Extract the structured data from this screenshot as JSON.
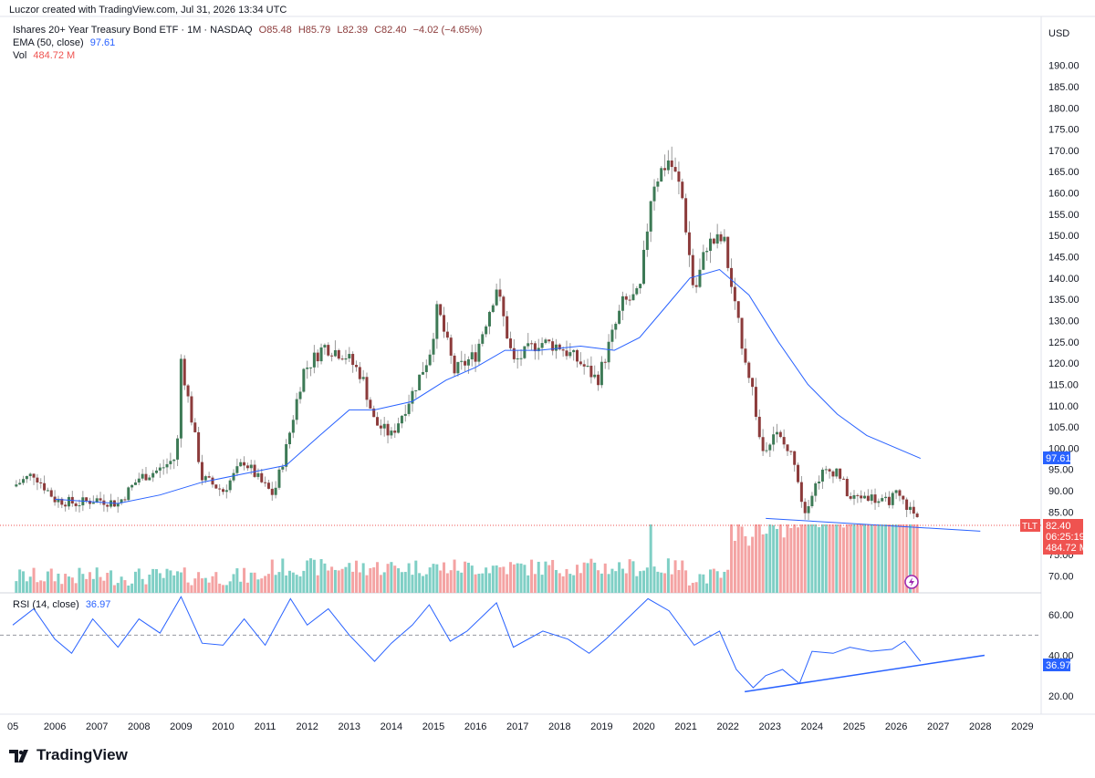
{
  "header": {
    "credit": "Luczor created with TradingView.com, Jul 31, 2026 13:34 UTC",
    "symbol_line": "Ishares 20+ Year Treasury Bond ETF · 1M · NASDAQ",
    "o": "O85.48",
    "h": "H85.79",
    "l": "L82.39",
    "c": "C82.40",
    "chg": "−4.02 (−4.65%)",
    "ema_label": "EMA (50, close)",
    "ema_value": "97.61",
    "vol_label": "Vol",
    "vol_value": "484.72 M",
    "rsi_label": "RSI (14, close)",
    "rsi_value": "36.97"
  },
  "currency": "USD",
  "price_axis": [
    "190.00",
    "185.00",
    "180.00",
    "175.00",
    "170.00",
    "165.00",
    "160.00",
    "155.00",
    "150.00",
    "145.00",
    "140.00",
    "135.00",
    "130.00",
    "125.00",
    "120.00",
    "115.00",
    "110.00",
    "105.00",
    "100.00",
    "95.00",
    "90.00",
    "85.00",
    "75.00",
    "70.00"
  ],
  "rsi_axis": [
    "60.00",
    "40.00",
    "20.00"
  ],
  "tags": {
    "ema": "97.61",
    "ticker": "TLT",
    "price": "82.40",
    "countdown": "06:25:19",
    "volume": "484.72 M",
    "rsi": "36.97"
  },
  "brand": "TradingView",
  "colors": {
    "up": "#26a69a",
    "down": "#ef5350",
    "candle_up": "#3d7a56",
    "candle_down": "#8c3b3b",
    "ema": "#2962ff",
    "rsi": "#2962ff",
    "vol_up": "#7fcfc5",
    "vol_down": "#f4a3a3"
  },
  "chart_data": {
    "type": "candlestick",
    "interval": "1M",
    "x_tick_labels": [
      "05",
      "2006",
      "2007",
      "2008",
      "2009",
      "2010",
      "2011",
      "2012",
      "2013",
      "2014",
      "2015",
      "2016",
      "2017",
      "2018",
      "2019",
      "2020",
      "2021",
      "2022",
      "2023",
      "2024",
      "2025",
      "2026",
      "2027",
      "2028",
      "2029"
    ],
    "price_range": [
      67,
      192
    ],
    "price_series": [
      {
        "year": 2005.0,
        "close": 91
      },
      {
        "year": 2005.5,
        "close": 94
      },
      {
        "year": 2006.0,
        "close": 88
      },
      {
        "year": 2006.5,
        "close": 87
      },
      {
        "year": 2007.0,
        "close": 88
      },
      {
        "year": 2007.5,
        "close": 87
      },
      {
        "year": 2008.0,
        "close": 93
      },
      {
        "year": 2008.5,
        "close": 95
      },
      {
        "year": 2008.9,
        "close": 98
      },
      {
        "year": 2009.0,
        "close": 121
      },
      {
        "year": 2009.5,
        "close": 93
      },
      {
        "year": 2010.0,
        "close": 90
      },
      {
        "year": 2010.5,
        "close": 97
      },
      {
        "year": 2010.9,
        "close": 92
      },
      {
        "year": 2011.2,
        "close": 89
      },
      {
        "year": 2011.5,
        "close": 100
      },
      {
        "year": 2011.9,
        "close": 118
      },
      {
        "year": 2012.4,
        "close": 124
      },
      {
        "year": 2012.9,
        "close": 122
      },
      {
        "year": 2013.3,
        "close": 117
      },
      {
        "year": 2013.6,
        "close": 106
      },
      {
        "year": 2014.0,
        "close": 103
      },
      {
        "year": 2014.5,
        "close": 113
      },
      {
        "year": 2014.9,
        "close": 122
      },
      {
        "year": 2015.1,
        "close": 133
      },
      {
        "year": 2015.5,
        "close": 118
      },
      {
        "year": 2016.0,
        "close": 122
      },
      {
        "year": 2016.5,
        "close": 138
      },
      {
        "year": 2016.9,
        "close": 120
      },
      {
        "year": 2017.5,
        "close": 125
      },
      {
        "year": 2018.0,
        "close": 124
      },
      {
        "year": 2018.5,
        "close": 120
      },
      {
        "year": 2018.9,
        "close": 116
      },
      {
        "year": 2019.5,
        "close": 134
      },
      {
        "year": 2019.9,
        "close": 136
      },
      {
        "year": 2020.2,
        "close": 162
      },
      {
        "year": 2020.6,
        "close": 168
      },
      {
        "year": 2020.9,
        "close": 160
      },
      {
        "year": 2021.2,
        "close": 136
      },
      {
        "year": 2021.5,
        "close": 148
      },
      {
        "year": 2021.9,
        "close": 149
      },
      {
        "year": 2022.2,
        "close": 131
      },
      {
        "year": 2022.6,
        "close": 113
      },
      {
        "year": 2022.8,
        "close": 99
      },
      {
        "year": 2023.1,
        "close": 104
      },
      {
        "year": 2023.6,
        "close": 97
      },
      {
        "year": 2023.8,
        "close": 85
      },
      {
        "year": 2024.2,
        "close": 94
      },
      {
        "year": 2024.6,
        "close": 95
      },
      {
        "year": 2024.9,
        "close": 88
      },
      {
        "year": 2025.3,
        "close": 89
      },
      {
        "year": 2025.7,
        "close": 87
      },
      {
        "year": 2026.0,
        "close": 89
      },
      {
        "year": 2026.3,
        "close": 86
      },
      {
        "year": 2026.58,
        "close": 82.4
      }
    ],
    "ema_series": [
      {
        "year": 2006.0,
        "v": 88
      },
      {
        "year": 2007.5,
        "v": 87
      },
      {
        "year": 2008.5,
        "v": 89
      },
      {
        "year": 2009.5,
        "v": 92
      },
      {
        "year": 2010.5,
        "v": 94
      },
      {
        "year": 2011.5,
        "v": 96
      },
      {
        "year": 2012.3,
        "v": 103
      },
      {
        "year": 2013.0,
        "v": 109
      },
      {
        "year": 2013.6,
        "v": 109
      },
      {
        "year": 2014.5,
        "v": 111
      },
      {
        "year": 2015.3,
        "v": 116
      },
      {
        "year": 2016.0,
        "v": 119
      },
      {
        "year": 2016.7,
        "v": 123
      },
      {
        "year": 2017.5,
        "v": 123
      },
      {
        "year": 2018.5,
        "v": 124
      },
      {
        "year": 2019.3,
        "v": 123
      },
      {
        "year": 2019.9,
        "v": 126
      },
      {
        "year": 2020.5,
        "v": 133
      },
      {
        "year": 2021.1,
        "v": 140
      },
      {
        "year": 2021.8,
        "v": 142
      },
      {
        "year": 2022.5,
        "v": 136
      },
      {
        "year": 2023.2,
        "v": 125
      },
      {
        "year": 2023.9,
        "v": 115
      },
      {
        "year": 2024.6,
        "v": 108
      },
      {
        "year": 2025.3,
        "v": 103
      },
      {
        "year": 2026.58,
        "v": 97.61
      }
    ],
    "price_trendline": [
      {
        "year": 2022.9,
        "v": 83.5
      },
      {
        "year": 2028.0,
        "v": 80.5
      }
    ],
    "rsi_range": [
      10,
      70
    ],
    "rsi_series": [
      {
        "year": 2005.0,
        "v": 55
      },
      {
        "year": 2005.5,
        "v": 63
      },
      {
        "year": 2006.0,
        "v": 48
      },
      {
        "year": 2006.4,
        "v": 41
      },
      {
        "year": 2006.9,
        "v": 58
      },
      {
        "year": 2007.5,
        "v": 44
      },
      {
        "year": 2008.0,
        "v": 58
      },
      {
        "year": 2008.5,
        "v": 51
      },
      {
        "year": 2009.0,
        "v": 69
      },
      {
        "year": 2009.5,
        "v": 46
      },
      {
        "year": 2010.0,
        "v": 45
      },
      {
        "year": 2010.5,
        "v": 58
      },
      {
        "year": 2011.0,
        "v": 45
      },
      {
        "year": 2011.6,
        "v": 68
      },
      {
        "year": 2012.0,
        "v": 55
      },
      {
        "year": 2012.5,
        "v": 63
      },
      {
        "year": 2013.0,
        "v": 50
      },
      {
        "year": 2013.6,
        "v": 37
      },
      {
        "year": 2014.0,
        "v": 46
      },
      {
        "year": 2014.5,
        "v": 55
      },
      {
        "year": 2014.9,
        "v": 65
      },
      {
        "year": 2015.4,
        "v": 47
      },
      {
        "year": 2015.8,
        "v": 52
      },
      {
        "year": 2016.5,
        "v": 66
      },
      {
        "year": 2016.9,
        "v": 44
      },
      {
        "year": 2017.6,
        "v": 52
      },
      {
        "year": 2018.2,
        "v": 48
      },
      {
        "year": 2018.7,
        "v": 41
      },
      {
        "year": 2019.1,
        "v": 48
      },
      {
        "year": 2019.6,
        "v": 58
      },
      {
        "year": 2020.1,
        "v": 68
      },
      {
        "year": 2020.6,
        "v": 62
      },
      {
        "year": 2021.2,
        "v": 45
      },
      {
        "year": 2021.8,
        "v": 52
      },
      {
        "year": 2022.2,
        "v": 33
      },
      {
        "year": 2022.6,
        "v": 24
      },
      {
        "year": 2022.9,
        "v": 30
      },
      {
        "year": 2023.3,
        "v": 33
      },
      {
        "year": 2023.7,
        "v": 26
      },
      {
        "year": 2024.0,
        "v": 42
      },
      {
        "year": 2024.5,
        "v": 41
      },
      {
        "year": 2024.9,
        "v": 44
      },
      {
        "year": 2025.4,
        "v": 42
      },
      {
        "year": 2025.9,
        "v": 43
      },
      {
        "year": 2026.2,
        "v": 47
      },
      {
        "year": 2026.58,
        "v": 36.97
      }
    ],
    "rsi_trendline": [
      {
        "year": 2022.4,
        "v": 22
      },
      {
        "year": 2028.1,
        "v": 40
      }
    ],
    "rsi_midline": 50,
    "grid": false
  }
}
